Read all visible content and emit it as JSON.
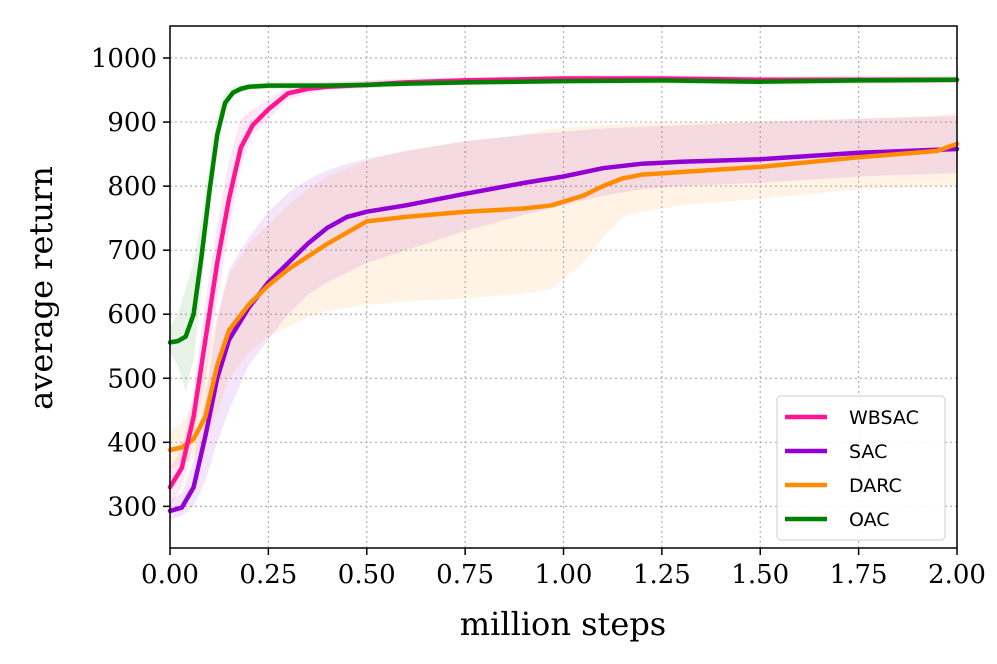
{
  "chart_data": {
    "type": "line",
    "xlabel": "million steps",
    "ylabel": "average return",
    "xlim": [
      0,
      2.0
    ],
    "ylim": [
      235,
      1050
    ],
    "xticks": [
      0.0,
      0.25,
      0.5,
      0.75,
      1.0,
      1.25,
      1.5,
      1.75,
      2.0
    ],
    "xtick_labels": [
      "0.00",
      "0.25",
      "0.50",
      "0.75",
      "1.00",
      "1.25",
      "1.50",
      "1.75",
      "2.00"
    ],
    "yticks": [
      300,
      400,
      500,
      600,
      700,
      800,
      900,
      1000
    ],
    "ytick_labels": [
      "300",
      "400",
      "500",
      "600",
      "700",
      "800",
      "900",
      "1000"
    ],
    "grid": true,
    "legend_position": "bottom-right",
    "series": [
      {
        "name": "WBSAC",
        "color": "#ff1493",
        "x": [
          0,
          0.03,
          0.06,
          0.09,
          0.12,
          0.15,
          0.18,
          0.21,
          0.25,
          0.3,
          0.35,
          0.4,
          0.5,
          0.6,
          0.75,
          1.0,
          1.25,
          1.5,
          1.75,
          2.0
        ],
        "y": [
          330,
          360,
          440,
          560,
          680,
          780,
          860,
          895,
          920,
          945,
          952,
          955,
          958,
          962,
          965,
          968,
          968,
          966,
          966,
          966
        ],
        "lower": [
          300,
          330,
          400,
          500,
          620,
          730,
          830,
          880,
          905,
          935,
          945,
          950,
          953,
          957,
          960,
          963,
          963,
          960,
          960,
          960
        ],
        "upper": [
          360,
          390,
          480,
          620,
          740,
          840,
          905,
          920,
          935,
          955,
          960,
          962,
          965,
          968,
          970,
          973,
          973,
          972,
          972,
          972
        ]
      },
      {
        "name": "SAC",
        "color": "#9400d3",
        "x": [
          0,
          0.03,
          0.06,
          0.09,
          0.12,
          0.15,
          0.2,
          0.25,
          0.3,
          0.35,
          0.4,
          0.45,
          0.5,
          0.6,
          0.75,
          0.9,
          1.0,
          1.1,
          1.2,
          1.3,
          1.5,
          1.75,
          2.0
        ],
        "y": [
          293,
          298,
          330,
          410,
          500,
          560,
          610,
          650,
          680,
          710,
          735,
          752,
          760,
          770,
          788,
          805,
          815,
          828,
          835,
          838,
          842,
          852,
          858
        ],
        "lower": [
          280,
          285,
          300,
          340,
          400,
          450,
          520,
          560,
          600,
          630,
          650,
          665,
          680,
          700,
          730,
          755,
          770,
          785,
          795,
          800,
          805,
          815,
          820
        ],
        "upper": [
          310,
          320,
          370,
          470,
          590,
          670,
          720,
          760,
          790,
          810,
          825,
          835,
          843,
          855,
          870,
          880,
          885,
          890,
          893,
          895,
          900,
          905,
          910
        ]
      },
      {
        "name": "DARC",
        "color": "#ff8c00",
        "x": [
          0,
          0.03,
          0.06,
          0.09,
          0.12,
          0.15,
          0.2,
          0.25,
          0.3,
          0.35,
          0.4,
          0.5,
          0.6,
          0.75,
          0.9,
          0.97,
          1.05,
          1.1,
          1.15,
          1.2,
          1.3,
          1.5,
          1.75,
          1.95,
          2.0
        ],
        "y": [
          388,
          392,
          405,
          440,
          520,
          575,
          615,
          645,
          670,
          690,
          710,
          745,
          752,
          760,
          765,
          770,
          785,
          800,
          812,
          818,
          822,
          830,
          845,
          855,
          866
        ],
        "lower": [
          360,
          365,
          375,
          400,
          450,
          500,
          540,
          565,
          580,
          595,
          605,
          615,
          620,
          625,
          632,
          640,
          680,
          720,
          750,
          760,
          770,
          780,
          795,
          800,
          800
        ],
        "upper": [
          420,
          430,
          460,
          520,
          600,
          660,
          710,
          740,
          770,
          795,
          815,
          840,
          855,
          870,
          880,
          890,
          893,
          895,
          897,
          898,
          900,
          902,
          905,
          910,
          915
        ]
      },
      {
        "name": "OAC",
        "color": "#008000",
        "x": [
          0,
          0.02,
          0.04,
          0.06,
          0.08,
          0.1,
          0.12,
          0.14,
          0.16,
          0.18,
          0.2,
          0.25,
          0.3,
          0.4,
          0.5,
          0.6,
          0.75,
          1.0,
          1.25,
          1.5,
          1.75,
          2.0
        ],
        "y": [
          556,
          558,
          565,
          600,
          690,
          790,
          880,
          930,
          946,
          952,
          955,
          957,
          957,
          957,
          958,
          960,
          962,
          964,
          965,
          963,
          965,
          966
        ],
        "lower": [
          540,
          520,
          480,
          530,
          640,
          760,
          860,
          920,
          940,
          946,
          950,
          952,
          952,
          952,
          953,
          955,
          958,
          960,
          960,
          958,
          960,
          961
        ],
        "upper": [
          580,
          600,
          640,
          680,
          750,
          830,
          910,
          945,
          955,
          958,
          960,
          962,
          963,
          963,
          964,
          966,
          967,
          969,
          970,
          969,
          970,
          971
        ]
      }
    ]
  }
}
